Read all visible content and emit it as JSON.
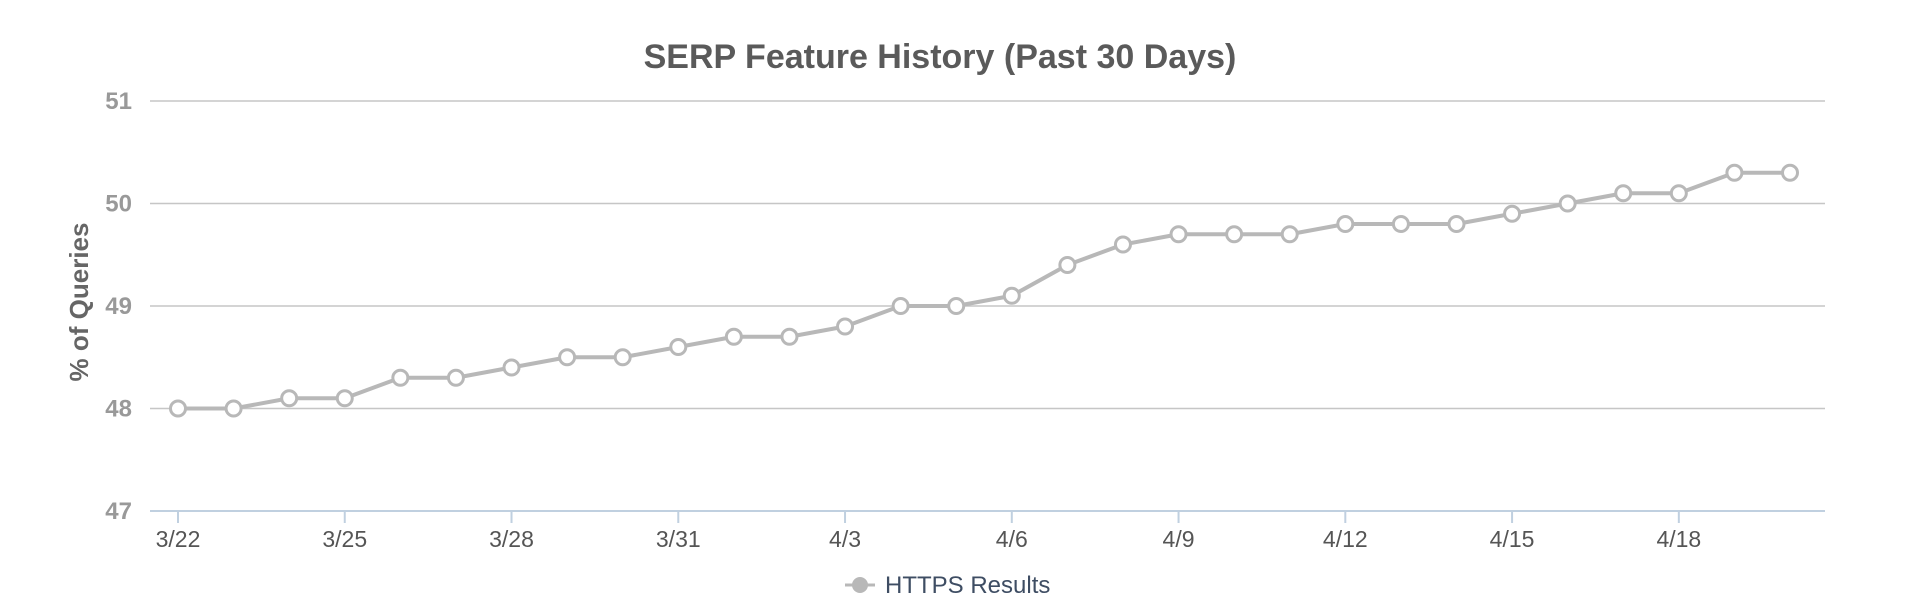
{
  "chart_data": {
    "type": "line",
    "title": "SERP Feature History (Past 30 Days)",
    "xlabel": "",
    "ylabel": "% of Queries",
    "ylim": [
      47,
      51
    ],
    "yticks": [
      "47",
      "48",
      "49",
      "50",
      "51"
    ],
    "xtick_labels": [
      "3/22",
      "3/25",
      "3/28",
      "3/31",
      "4/3",
      "4/6",
      "4/9",
      "4/12",
      "4/15",
      "4/18"
    ],
    "x": [
      "3/22",
      "3/23",
      "3/24",
      "3/25",
      "3/26",
      "3/27",
      "3/28",
      "3/29",
      "3/30",
      "3/31",
      "4/1",
      "4/2",
      "4/3",
      "4/4",
      "4/5",
      "4/6",
      "4/7",
      "4/8",
      "4/9",
      "4/10",
      "4/11",
      "4/12",
      "4/13",
      "4/14",
      "4/15",
      "4/16",
      "4/17",
      "4/18",
      "4/19",
      "4/20"
    ],
    "series": [
      {
        "name": "HTTPS Results",
        "color": "#b8b8b8",
        "values": [
          48.0,
          48.0,
          48.1,
          48.1,
          48.3,
          48.3,
          48.4,
          48.5,
          48.5,
          48.6,
          48.7,
          48.7,
          48.8,
          49.0,
          49.0,
          49.1,
          49.4,
          49.6,
          49.7,
          49.7,
          49.7,
          49.8,
          49.8,
          49.8,
          49.9,
          50.0,
          50.1,
          50.1,
          50.3,
          50.3
        ]
      }
    ],
    "grid": true,
    "legend": "bottom-center"
  }
}
